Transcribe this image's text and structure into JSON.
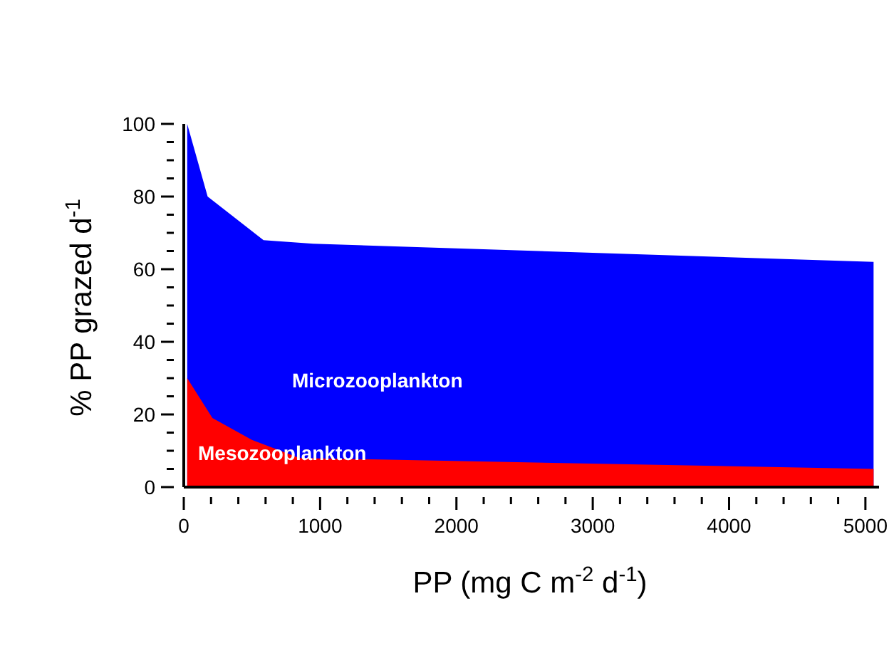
{
  "chart_data": {
    "type": "area",
    "xlabel": "PP (mg C m$^{-2}$ d$^{-1}$)",
    "ylabel": "% PP grazed d$^{-1}$",
    "series": [
      {
        "name": "Microzooplankton",
        "color": "#0000ff",
        "x": [
          25,
          175,
          585,
          950,
          5060
        ],
        "values": [
          100,
          80,
          68,
          67,
          62
        ]
      },
      {
        "name": "Mesozooplankton",
        "color": "#ff0000",
        "x": [
          25,
          210,
          500,
          850,
          5060
        ],
        "values": [
          30,
          19,
          13,
          8,
          5
        ]
      }
    ],
    "xlim": [
      0,
      5100
    ],
    "xticks": [
      0,
      {
        "value": 200,
        "label": null
      },
      {
        "value": 400,
        "label": null
      },
      {
        "value": 600,
        "label": null
      },
      {
        "value": 800,
        "label": null
      },
      1000,
      {
        "value": 1200,
        "label": null
      },
      {
        "value": 1400,
        "label": null
      },
      {
        "value": 1600,
        "label": null
      },
      {
        "value": 1800,
        "label": null
      },
      2000,
      {
        "value": 2200,
        "label": null
      },
      {
        "value": 2400,
        "label": null
      },
      {
        "value": 2600,
        "label": null
      },
      {
        "value": 2800,
        "label": null
      },
      3000,
      {
        "value": 3200,
        "label": null
      },
      {
        "value": 3400,
        "label": null
      },
      {
        "value": 3600,
        "label": null
      },
      {
        "value": 3800,
        "label": null
      },
      4000,
      {
        "value": 4200,
        "label": null
      },
      {
        "value": 4400,
        "label": null
      },
      {
        "value": 4600,
        "label": null
      },
      {
        "value": 4800,
        "label": null
      },
      5000
    ],
    "ylim": [
      0,
      100
    ],
    "yticks": [
      0,
      {
        "value": 5,
        "label": null
      },
      {
        "value": 10,
        "label": null
      },
      {
        "value": 15,
        "label": null
      },
      20,
      {
        "value": 25,
        "label": null
      },
      {
        "value": 30,
        "label": null
      },
      {
        "value": 35,
        "label": null
      },
      40,
      {
        "value": 45,
        "label": null
      },
      {
        "value": 50,
        "label": null
      },
      {
        "value": 55,
        "label": null
      },
      60,
      {
        "value": 65,
        "label": null
      },
      {
        "value": 70,
        "label": null
      },
      {
        "value": 75,
        "label": null
      },
      80,
      {
        "value": 85,
        "label": null
      },
      {
        "value": 90,
        "label": null
      },
      {
        "value": 95,
        "label": null
      },
      100
    ],
    "grid": false
  }
}
